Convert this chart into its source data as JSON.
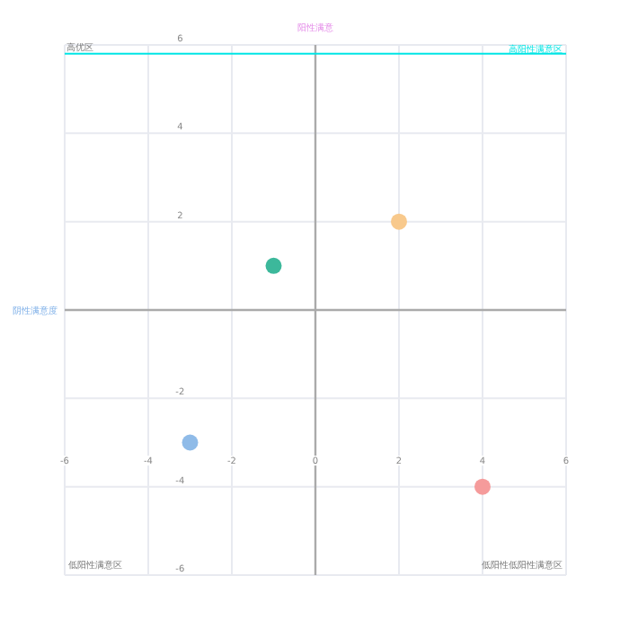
{
  "chart_data": {
    "type": "scatter",
    "xlabel": "阴性满意度",
    "ylabel": "阳性满意",
    "x": [
      -1,
      2,
      -3,
      4
    ],
    "values": [
      1,
      2,
      -3,
      -4
    ],
    "colors": [
      "#3cb89b",
      "#f8c98c",
      "#8fbbe8",
      "#f59b9b"
    ],
    "xlim": [
      -6,
      6
    ],
    "xticks": [
      -6,
      -4,
      -2,
      0,
      2,
      4,
      6
    ],
    "ylim": [
      -6,
      6
    ],
    "yticks": [
      -6,
      -4,
      -2,
      2,
      4,
      6
    ],
    "grid": true,
    "marker": "circle",
    "ref_lines": [
      {
        "axis": "y",
        "value": 5.8,
        "label": "高阳性满意区",
        "color": "#00e5e5"
      }
    ],
    "annotations": [
      "高优区",
      "低阳性满意区",
      "低阳性低阳性满意区"
    ]
  }
}
